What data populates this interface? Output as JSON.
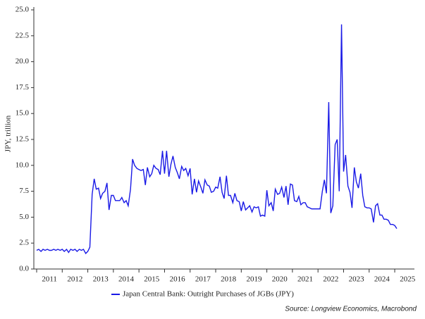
{
  "chart_data": {
    "type": "line",
    "y_label": "JPY, trillion",
    "source": "Source: Longview Economics, Macrobond",
    "legend": "bottom",
    "x": [
      2011,
      2011.08,
      2011.17,
      2011.25,
      2011.33,
      2011.42,
      2011.5,
      2011.58,
      2011.67,
      2011.75,
      2011.83,
      2011.92,
      2012,
      2012.08,
      2012.17,
      2012.25,
      2012.33,
      2012.42,
      2012.5,
      2012.58,
      2012.67,
      2012.75,
      2012.83,
      2012.92,
      2013,
      2013.08,
      2013.17,
      2013.25,
      2013.33,
      2013.42,
      2013.5,
      2013.58,
      2013.67,
      2013.75,
      2013.83,
      2013.92,
      2014,
      2014.08,
      2014.17,
      2014.25,
      2014.33,
      2014.42,
      2014.5,
      2014.58,
      2014.67,
      2014.75,
      2014.83,
      2014.92,
      2015,
      2015.08,
      2015.17,
      2015.25,
      2015.33,
      2015.42,
      2015.5,
      2015.58,
      2015.67,
      2015.75,
      2015.83,
      2015.92,
      2016,
      2016.08,
      2016.17,
      2016.25,
      2016.33,
      2016.42,
      2016.5,
      2016.58,
      2016.67,
      2016.75,
      2016.83,
      2016.92,
      2017,
      2017.08,
      2017.17,
      2017.25,
      2017.33,
      2017.42,
      2017.5,
      2017.58,
      2017.67,
      2017.75,
      2017.83,
      2017.92,
      2018,
      2018.08,
      2018.17,
      2018.25,
      2018.33,
      2018.42,
      2018.5,
      2018.58,
      2018.67,
      2018.75,
      2018.83,
      2018.92,
      2019,
      2019.08,
      2019.17,
      2019.25,
      2019.33,
      2019.42,
      2019.5,
      2019.58,
      2019.67,
      2019.75,
      2019.83,
      2019.92,
      2020,
      2020.08,
      2020.17,
      2020.25,
      2020.33,
      2020.42,
      2020.5,
      2020.58,
      2020.67,
      2020.75,
      2020.83,
      2020.92,
      2021,
      2021.08,
      2021.17,
      2021.25,
      2021.33,
      2021.42,
      2021.5,
      2021.58,
      2021.67,
      2021.75,
      2021.83,
      2021.92,
      2022,
      2022.08,
      2022.17,
      2022.25,
      2022.33,
      2022.42,
      2022.5,
      2022.58,
      2022.67,
      2022.75,
      2022.83,
      2022.92,
      2023,
      2023.08,
      2023.17,
      2023.25,
      2023.33,
      2023.42,
      2023.5,
      2023.58,
      2023.67,
      2023.75,
      2023.83,
      2023.92,
      2024,
      2024.08,
      2024.17,
      2024.25,
      2024.33,
      2024.42,
      2024.5,
      2024.58,
      2024.67,
      2024.75,
      2024.83,
      2024.92,
      2025,
      2025.08
    ],
    "series": [
      {
        "name": "Japan Central Bank: Outright Purchases of JGBs (JPY)",
        "color": "#1a1ae6",
        "values": [
          1.8,
          1.9,
          1.7,
          1.9,
          1.8,
          1.9,
          1.8,
          1.8,
          1.9,
          1.8,
          1.9,
          1.8,
          1.9,
          1.7,
          1.9,
          1.6,
          1.9,
          1.8,
          1.9,
          1.7,
          1.9,
          1.8,
          1.9,
          1.5,
          1.7,
          2.1,
          7.2,
          8.7,
          7.7,
          7.8,
          6.8,
          7.3,
          7.5,
          8.3,
          5.7,
          7.1,
          7.1,
          6.6,
          6.6,
          6.6,
          6.9,
          6.4,
          6.6,
          6.1,
          7.7,
          10.6,
          10.0,
          9.7,
          9.6,
          9.5,
          9.6,
          8.1,
          9.8,
          8.9,
          9.2,
          10.0,
          9.7,
          9.6,
          9.1,
          11.4,
          9.2,
          11.4,
          8.9,
          10.1,
          10.9,
          9.8,
          9.3,
          8.7,
          9.9,
          9.5,
          9.7,
          9.0,
          9.7,
          7.2,
          8.7,
          7.4,
          8.5,
          7.9,
          7.3,
          8.6,
          8.1,
          8.0,
          7.4,
          7.5,
          7.9,
          7.8,
          8.9,
          7.4,
          6.8,
          9.0,
          7.1,
          7.1,
          6.4,
          7.3,
          6.6,
          6.5,
          5.6,
          6.5,
          5.7,
          5.9,
          6.1,
          5.5,
          6.0,
          5.9,
          6.0,
          5.1,
          5.2,
          5.1,
          7.6,
          6.1,
          6.4,
          5.6,
          7.7,
          7.2,
          7.3,
          7.9,
          6.9,
          8.0,
          6.2,
          8.2,
          8.1,
          6.6,
          6.5,
          7.0,
          6.2,
          6.4,
          6.4,
          6.0,
          5.9,
          5.8,
          5.8,
          5.8,
          5.8,
          5.8,
          7.5,
          8.6,
          7.3,
          16.1,
          5.4,
          6.1,
          12.0,
          12.5,
          7.5,
          23.6,
          9.4,
          11.0,
          8.0,
          7.4,
          5.9,
          9.8,
          8.4,
          7.8,
          9.2,
          7.1,
          6.0,
          5.9,
          5.9,
          5.8,
          4.5,
          6.1,
          6.3,
          5.2,
          5.2,
          4.8,
          4.8,
          4.7,
          4.3,
          4.3,
          4.2,
          3.9
        ]
      }
    ],
    "xlim": [
      2010.89,
      2025.77
    ],
    "xticks": [
      2011,
      2012,
      2013,
      2014,
      2015,
      2016,
      2017,
      2018,
      2019,
      2020,
      2021,
      2022,
      2023,
      2024,
      2025
    ],
    "ylim": [
      0,
      25
    ],
    "yticks": [
      {
        "value": 0,
        "label": "0.0"
      },
      {
        "value": 2.5,
        "label": "2.5"
      },
      {
        "value": 5,
        "label": "5.0"
      },
      {
        "value": 7.5,
        "label": "7.5"
      },
      {
        "value": 10,
        "label": "10.0"
      },
      {
        "value": 12.5,
        "label": "12.5"
      },
      {
        "value": 15,
        "label": "15.0"
      },
      {
        "value": 17.5,
        "label": "17.5"
      },
      {
        "value": 20,
        "label": "20.0"
      },
      {
        "value": 22.5,
        "label": "22.5"
      },
      {
        "value": 25,
        "label": "25.0"
      }
    ]
  }
}
